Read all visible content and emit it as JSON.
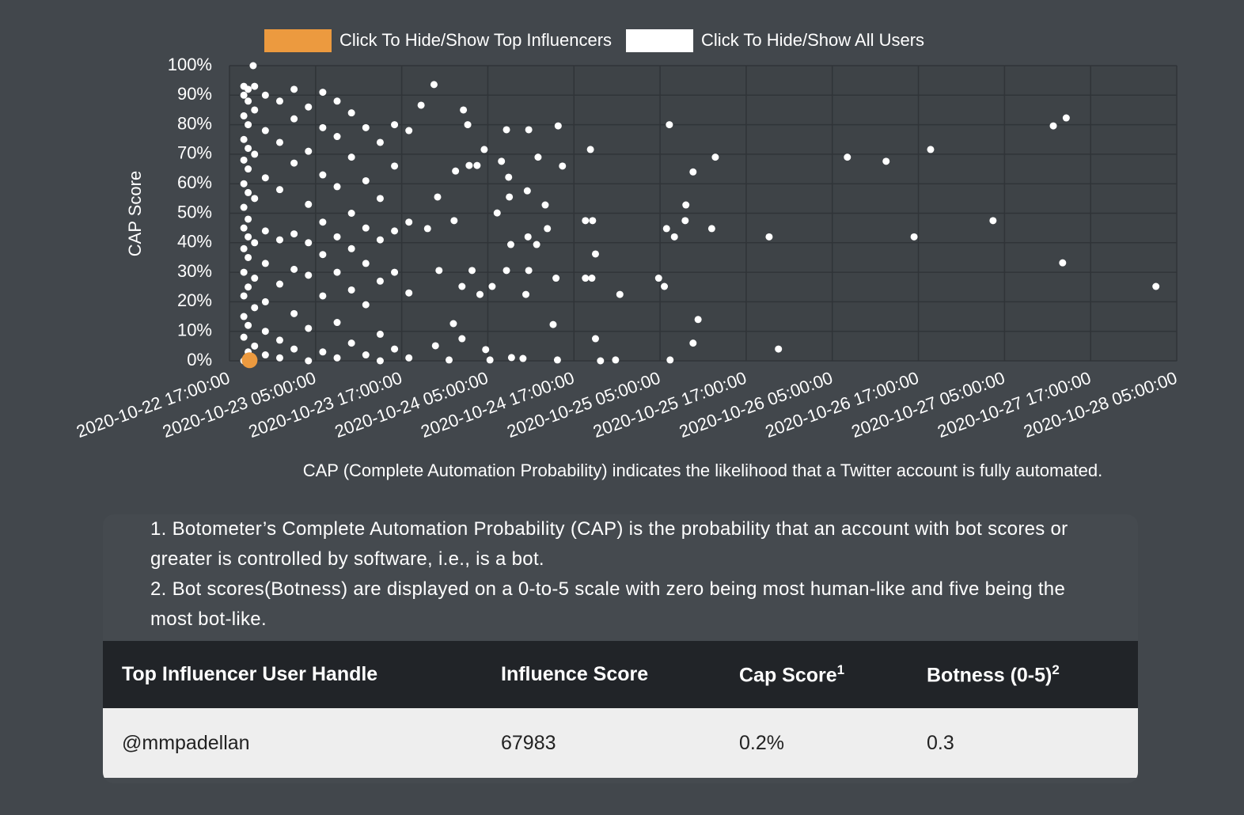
{
  "chart_data": {
    "type": "scatter",
    "ylabel": "CAP Score",
    "caption": "CAP (Complete Automation Probability) indicates the likelihood that a Twitter account is fully automated.",
    "xlim": [
      "2020-10-22 17:00:00",
      "2020-10-28 05:00:00"
    ],
    "xticks": [
      "2020-10-22 17:00:00",
      "2020-10-23 05:00:00",
      "2020-10-23 17:00:00",
      "2020-10-24 05:00:00",
      "2020-10-24 17:00:00",
      "2020-10-25 05:00:00",
      "2020-10-25 17:00:00",
      "2020-10-26 05:00:00",
      "2020-10-26 17:00:00",
      "2020-10-27 05:00:00",
      "2020-10-27 17:00:00",
      "2020-10-28 05:00:00"
    ],
    "ylim": [
      0,
      100
    ],
    "yticks": [
      {
        "value": 0,
        "label": "0%"
      },
      {
        "value": 10,
        "label": "10%"
      },
      {
        "value": 20,
        "label": "20%"
      },
      {
        "value": 30,
        "label": "30%"
      },
      {
        "value": 40,
        "label": "40%"
      },
      {
        "value": 50,
        "label": "50%"
      },
      {
        "value": 60,
        "label": "60%"
      },
      {
        "value": 70,
        "label": "70%"
      },
      {
        "value": 80,
        "label": "80%"
      },
      {
        "value": 90,
        "label": "90%"
      },
      {
        "value": 100,
        "label": "100%"
      }
    ],
    "grid": true,
    "series": [
      {
        "name": "Click To Hide/Show Top Influencers",
        "color": "#ec9a3f",
        "x": [
          "2020-10-22 19:48:00"
        ],
        "values": [
          0.2
        ]
      },
      {
        "name": "Click To Hide/Show All Users",
        "color": "#ffffff",
        "x": [
          "2020-10-22 19:00:00",
          "2020-10-22 19:00:00",
          "2020-10-22 19:00:00",
          "2020-10-22 19:00:00",
          "2020-10-22 19:00:00",
          "2020-10-22 19:00:00",
          "2020-10-22 19:00:00",
          "2020-10-22 19:00:00",
          "2020-10-22 19:00:00",
          "2020-10-22 19:00:00",
          "2020-10-22 19:00:00",
          "2020-10-22 19:00:00",
          "2020-10-22 19:00:00",
          "2020-10-22 19:00:00",
          "2020-10-22 19:36:00",
          "2020-10-22 19:36:00",
          "2020-10-22 19:36:00",
          "2020-10-22 19:36:00",
          "2020-10-22 19:36:00",
          "2020-10-22 19:36:00",
          "2020-10-22 19:36:00",
          "2020-10-22 19:36:00",
          "2020-10-22 19:36:00",
          "2020-10-22 19:36:00",
          "2020-10-22 19:36:00",
          "2020-10-22 19:36:00",
          "2020-10-22 20:30:00",
          "2020-10-22 20:30:00",
          "2020-10-22 20:30:00",
          "2020-10-22 20:30:00",
          "2020-10-22 20:30:00",
          "2020-10-22 20:30:00",
          "2020-10-22 20:30:00",
          "2020-10-22 20:30:00",
          "2020-10-22 22:00:00",
          "2020-10-22 22:00:00",
          "2020-10-22 22:00:00",
          "2020-10-22 22:00:00",
          "2020-10-22 22:00:00",
          "2020-10-22 22:00:00",
          "2020-10-22 22:00:00",
          "2020-10-22 22:00:00",
          "2020-10-23 00:00:00",
          "2020-10-23 00:00:00",
          "2020-10-23 00:00:00",
          "2020-10-23 00:00:00",
          "2020-10-23 00:00:00",
          "2020-10-23 00:00:00",
          "2020-10-23 00:00:00",
          "2020-10-23 02:00:00",
          "2020-10-23 02:00:00",
          "2020-10-23 02:00:00",
          "2020-10-23 02:00:00",
          "2020-10-23 02:00:00",
          "2020-10-23 02:00:00",
          "2020-10-23 02:00:00",
          "2020-10-23 04:00:00",
          "2020-10-23 04:00:00",
          "2020-10-23 04:00:00",
          "2020-10-23 04:00:00",
          "2020-10-23 04:00:00",
          "2020-10-23 04:00:00",
          "2020-10-23 04:00:00",
          "2020-10-23 06:00:00",
          "2020-10-23 06:00:00",
          "2020-10-23 06:00:00",
          "2020-10-23 06:00:00",
          "2020-10-23 06:00:00",
          "2020-10-23 06:00:00",
          "2020-10-23 06:00:00",
          "2020-10-23 08:00:00",
          "2020-10-23 08:00:00",
          "2020-10-23 08:00:00",
          "2020-10-23 08:00:00",
          "2020-10-23 08:00:00",
          "2020-10-23 08:00:00",
          "2020-10-23 08:00:00",
          "2020-10-23 10:00:00",
          "2020-10-23 10:00:00",
          "2020-10-23 10:00:00",
          "2020-10-23 10:00:00",
          "2020-10-23 10:00:00",
          "2020-10-23 10:00:00",
          "2020-10-23 12:00:00",
          "2020-10-23 12:00:00",
          "2020-10-23 12:00:00",
          "2020-10-23 12:00:00",
          "2020-10-23 12:00:00",
          "2020-10-23 12:00:00",
          "2020-10-23 14:00:00",
          "2020-10-23 14:00:00",
          "2020-10-23 14:00:00",
          "2020-10-23 14:00:00",
          "2020-10-23 14:00:00",
          "2020-10-23 14:00:00",
          "2020-10-23 16:00:00",
          "2020-10-23 16:00:00",
          "2020-10-23 16:00:00",
          "2020-10-23 16:00:00",
          "2020-10-23 16:00:00",
          "2020-10-23 18:00:00",
          "2020-10-23 18:00:00",
          "2020-10-23 18:00:00",
          "2020-10-23 18:00:00",
          "2020-10-22 20:18:00",
          "2020-10-23 21:30:00",
          "2020-10-24 01:36:00",
          "2020-10-23 19:42:00",
          "2020-10-24 02:12:00",
          "2020-10-24 14:48:00",
          "2020-10-25 06:18:00",
          "2020-10-24 19:18:00",
          "2020-10-25 12:42:00",
          "2020-10-25 09:36:00",
          "2020-10-26 07:06:00",
          "2020-10-26 12:30:00",
          "2020-10-26 18:42:00",
          "2020-10-27 11:48:00",
          "2020-10-27 13:36:00",
          "2020-10-27 03:24:00",
          "2020-10-27 13:06:00",
          "2020-10-28 02:06:00",
          "2020-10-26 16:24:00",
          "2020-10-25 20:12:00",
          "2020-10-25 21:30:00",
          "2020-10-25 12:12:00",
          "2020-10-25 08:36:00",
          "2020-10-25 08:30:00",
          "2020-10-25 05:54:00",
          "2020-10-25 07:00:00",
          "2020-10-25 10:18:00",
          "2020-10-25 09:36:00",
          "2020-10-25 06:24:00",
          "2020-10-25 04:48:00",
          "2020-10-25 05:36:00",
          "2020-10-24 23:24:00",
          "2020-10-24 22:48:00",
          "2020-10-24 20:42:00",
          "2020-10-24 20:00:00",
          "2020-10-24 20:00:00",
          "2020-10-24 18:36:00",
          "2020-10-24 19:36:00",
          "2020-10-24 18:36:00",
          "2020-10-24 19:30:00",
          "2020-10-24 15:24:00",
          "2020-10-24 14:30:00",
          "2020-10-24 14:06:00",
          "2020-10-24 14:42:00",
          "2020-10-24 13:00:00",
          "2020-10-24 13:18:00",
          "2020-10-24 11:48:00",
          "2020-10-24 12:00:00",
          "2020-10-24 10:42:00",
          "2020-10-24 10:30:00",
          "2020-10-24 10:18:00",
          "2020-10-24 10:42:00",
          "2020-10-24 10:36:00",
          "2020-10-24 08:00:00",
          "2020-10-24 08:12:00",
          "2020-10-24 07:36:00",
          "2020-10-24 07:54:00",
          "2020-10-24 06:54:00",
          "2020-10-24 07:36:00",
          "2020-10-24 06:18:00",
          "2020-10-24 05:36:00",
          "2020-10-24 04:30:00",
          "2020-10-24 03:54:00",
          "2020-10-24 08:18:00",
          "2020-10-24 09:54:00",
          "2020-10-24 05:18:00",
          "2020-10-24 04:42:00",
          "2020-10-24 02:48:00",
          "2020-10-24 01:24:00",
          "2020-10-24 00:12:00",
          "2020-10-24 01:24:00",
          "2020-10-24 00:18:00",
          "2020-10-24 00:30:00",
          "2020-10-24 02:24:00",
          "2020-10-24 03:30:00",
          "2020-10-23 23:36:00",
          "2020-10-23 21:42:00",
          "2020-10-23 22:00:00",
          "2020-10-23 20:36:00",
          "2020-10-23 22:12:00"
        ],
        "values": [
          0,
          8,
          15,
          22,
          30,
          38,
          45,
          52,
          60,
          68,
          75,
          83,
          90,
          93,
          3,
          12,
          25,
          35,
          42,
          48,
          57,
          65,
          72,
          80,
          88,
          92,
          5,
          18,
          28,
          40,
          55,
          70,
          85,
          93,
          2,
          10,
          20,
          33,
          44,
          62,
          78,
          90,
          1,
          7,
          26,
          41,
          58,
          74,
          88,
          4,
          16,
          31,
          43,
          67,
          82,
          92,
          0,
          11,
          29,
          40,
          53,
          71,
          86,
          3,
          22,
          36,
          47,
          63,
          79,
          91,
          1,
          13,
          30,
          42,
          59,
          76,
          88,
          6,
          24,
          38,
          50,
          69,
          84,
          2,
          19,
          33,
          45,
          61,
          79,
          0,
          9,
          27,
          41,
          55,
          74,
          4,
          30,
          44,
          66,
          80,
          1,
          23,
          47,
          78,
          100,
          93.6,
          85,
          86.6,
          80,
          79.6,
          80,
          71.6,
          69,
          64,
          69,
          67.6,
          71.6,
          79.6,
          82.3,
          47.5,
          33.2,
          25.2,
          42,
          42,
          4,
          44.8,
          52.8,
          47.5,
          44.8,
          42,
          14,
          6,
          0.3,
          28,
          25.2,
          22.5,
          0.3,
          0,
          7.5,
          36.2,
          47.5,
          47.5,
          28,
          28,
          66,
          28,
          12.3,
          0.3,
          52.8,
          44.8,
          39.4,
          69,
          78.3,
          57.6,
          22.5,
          30.6,
          42,
          55.5,
          39.4,
          30.6,
          62.2,
          67.6,
          78.3,
          50.1,
          25.2,
          71.6,
          22.5,
          1.1,
          0.8,
          0.3,
          3.8,
          30.6,
          25.2,
          12.6,
          7.5,
          47.5,
          64.3,
          66.2,
          66.2,
          0.3,
          5.1,
          55.5,
          44.8,
          30.6
        ]
      }
    ]
  },
  "notes": [
    "1. Botometer’s Complete Automation Probability (CAP) is the probability that an account with bot scores or greater is controlled by software, i.e., is a bot.",
    "2. Bot scores(Botness) are displayed on a 0-to-5 scale with zero being most human-like and five being the most bot-like."
  ],
  "table": {
    "header": [
      {
        "text": "Top Influencer User Handle"
      },
      {
        "text": "Influence Score"
      },
      {
        "text": "Cap Score",
        "sup": "1"
      },
      {
        "text": "Botness (0-5)",
        "sup": "2"
      }
    ],
    "rows": [
      [
        "@mmpadellan",
        67983,
        "0.2%",
        0.3
      ]
    ]
  }
}
